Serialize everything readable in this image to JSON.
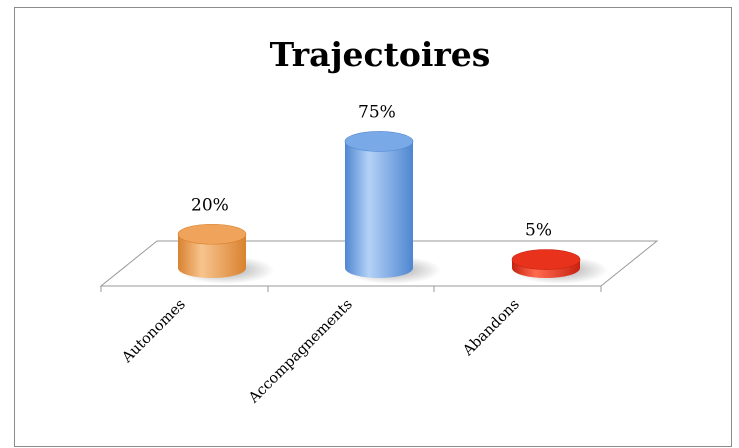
{
  "chart_data": {
    "type": "bar",
    "title": "Trajectoires",
    "xlabel": "",
    "ylabel": "",
    "categories": [
      "Autonomes",
      "Accompagnements",
      "Abandons"
    ],
    "values": [
      20,
      75,
      5
    ],
    "data_labels": [
      "20%",
      "75%",
      "5%"
    ],
    "unit": "%",
    "ylim": [
      0,
      80
    ],
    "style": "3d-cylinder",
    "grid": false,
    "legend": "none",
    "colors": [
      "#f0a35a",
      "#79a9e6",
      "#e8321c"
    ],
    "colors_dark": [
      "#d9822f",
      "#4f86d1",
      "#c72210"
    ],
    "colors_light": [
      "#f7c48e",
      "#b4d2f7",
      "#ff6a4f"
    ]
  }
}
